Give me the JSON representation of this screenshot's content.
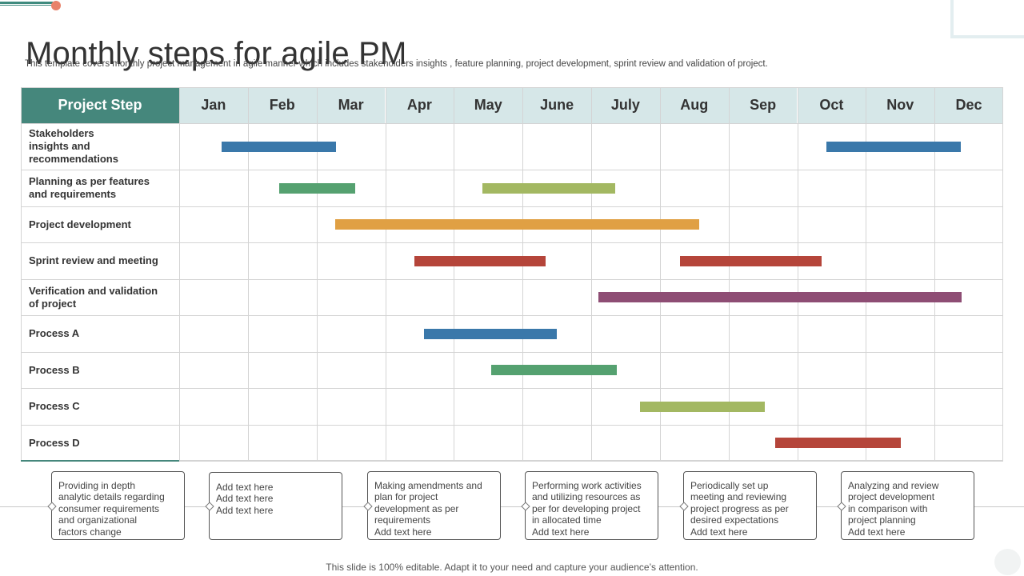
{
  "page": {
    "title": "Monthly steps for agile PM",
    "subtitle": "This template covers monthly project management in  agile manner which includes stakeholders insights , feature planning, project development, sprint review and validation of project.",
    "footer": "This slide is 100% editable. Adapt it to your need and capture your audience’s attention."
  },
  "chart_data": {
    "type": "gantt",
    "header_label": "Project Step",
    "months": [
      "Jan",
      "Feb",
      "Mar",
      "Apr",
      "May",
      "June",
      "July",
      "Aug",
      "Sep",
      "Oct",
      "Nov",
      "Dec"
    ],
    "colors": {
      "header_step_bg": "#45877c",
      "header_month_bg": "#d6e7e8",
      "blue": "#3a78aa",
      "green": "#55a170",
      "olive": "#a3b862",
      "orange": "#e0a044",
      "red": "#b5453a",
      "purple": "#8e4d74"
    },
    "rows": [
      {
        "label_lines": [
          "Stakeholders",
          "insights  and",
          "recommendations"
        ],
        "bars": [
          {
            "start": 0.62,
            "end": 2.28,
            "color": "blue"
          },
          {
            "start": 9.42,
            "end": 11.38,
            "color": "blue"
          }
        ]
      },
      {
        "label_lines": [
          "Planning as per features",
          "and requirements"
        ],
        "bars": [
          {
            "start": 1.46,
            "end": 2.56,
            "color": "green"
          },
          {
            "start": 4.42,
            "end": 6.35,
            "color": "olive"
          }
        ]
      },
      {
        "label_lines": [
          "Project development"
        ],
        "bars": [
          {
            "start": 2.27,
            "end": 7.57,
            "color": "orange"
          }
        ]
      },
      {
        "label_lines": [
          "Sprint review and meeting"
        ],
        "bars": [
          {
            "start": 3.42,
            "end": 5.34,
            "color": "red"
          },
          {
            "start": 7.29,
            "end": 9.35,
            "color": "red"
          }
        ]
      },
      {
        "label_lines": [
          "Verification and validation",
          "of project"
        ],
        "bars": [
          {
            "start": 6.1,
            "end": 11.39,
            "color": "purple"
          }
        ]
      },
      {
        "label_lines": [
          "Process  A"
        ],
        "bars": [
          {
            "start": 3.57,
            "end": 5.5,
            "color": "blue"
          }
        ]
      },
      {
        "label_lines": [
          "Process  B"
        ],
        "bars": [
          {
            "start": 4.54,
            "end": 6.37,
            "color": "green"
          }
        ]
      },
      {
        "label_lines": [
          "Process  C"
        ],
        "bars": [
          {
            "start": 6.71,
            "end": 8.53,
            "color": "olive"
          }
        ]
      },
      {
        "label_lines": [
          "Process  D"
        ],
        "bars": [
          {
            "start": 8.68,
            "end": 10.51,
            "color": "red"
          }
        ]
      }
    ]
  },
  "timeline": {
    "boxes": [
      {
        "lines": [
          "Providing in depth",
          "analytic details regarding",
          "consumer requirements",
          "and organizational",
          "factors change"
        ]
      },
      {
        "lines": [
          "Add text here",
          "Add text here",
          "Add text here"
        ]
      },
      {
        "lines": [
          "Making amendments and",
          "plan for project",
          "development as per",
          "requirements",
          "Add text here"
        ]
      },
      {
        "lines": [
          "Performing work activities",
          "and utilizing resources as",
          "per for developing project",
          "in allocated time",
          "Add text here"
        ]
      },
      {
        "lines": [
          "Periodically set up",
          "meeting and reviewing",
          "project progress as per",
          "desired expectations",
          "Add text here"
        ]
      },
      {
        "lines": [
          "Analyzing  and review",
          "project development",
          "in comparison with",
          "project planning",
          "Add text here"
        ]
      }
    ]
  }
}
